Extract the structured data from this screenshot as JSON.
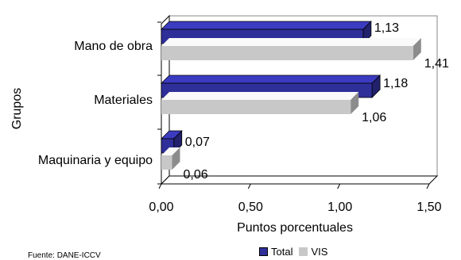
{
  "chart_data": {
    "type": "bar",
    "orientation": "horizontal",
    "categories": [
      "Mano de obra",
      "Materiales",
      "Maquinaria y equipo"
    ],
    "series": [
      {
        "name": "Total",
        "values": [
          1.13,
          1.18,
          0.07
        ],
        "labels": [
          "1,13",
          "1,18",
          "0,07"
        ],
        "color": "#2f2f9a"
      },
      {
        "name": "VIS",
        "values": [
          1.41,
          1.06,
          0.06
        ],
        "labels": [
          "1,41",
          "1,06",
          "0,06"
        ],
        "color": "#c8c8c8"
      }
    ],
    "xlabel": "Puntos porcentuales",
    "ylabel": "Grupos",
    "xlim": [
      0,
      1.5
    ],
    "xticks": [
      0,
      0.5,
      1.0,
      1.5
    ],
    "xtick_labels": [
      "0,00",
      "0,50",
      "1,00",
      "1,50"
    ],
    "grid": false,
    "legend_position": "bottom"
  },
  "source_note": "Fuente: DANE-ICCV"
}
